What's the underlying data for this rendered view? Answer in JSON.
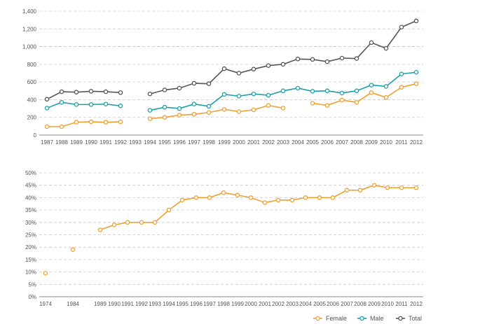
{
  "chart_data": [
    {
      "type": "line",
      "title": "",
      "xlabel": "",
      "ylabel": "",
      "ylim": [
        0,
        1400
      ],
      "yticks": [
        "0",
        "200",
        "400",
        "600",
        "800",
        "1,000",
        "1,200",
        "1,400"
      ],
      "ytick_values": [
        0,
        200,
        400,
        600,
        800,
        1000,
        1200,
        1400
      ],
      "categories": [
        "1987",
        "1988",
        "1989",
        "1990",
        "1991",
        "1992",
        "1993",
        "1994",
        "1995",
        "1996",
        "1997",
        "1998",
        "1999",
        "2000",
        "2001",
        "2002",
        "2003",
        "2004",
        "2005",
        "2006",
        "2007",
        "2008",
        "2009",
        "2010",
        "2011",
        "2012"
      ],
      "grid": true,
      "series": [
        {
          "name": "Female",
          "color": "#f0a030",
          "values": [
            95,
            95,
            145,
            150,
            145,
            150,
            null,
            185,
            200,
            225,
            235,
            255,
            290,
            265,
            285,
            335,
            305,
            null,
            360,
            335,
            395,
            370,
            480,
            425,
            540,
            580
          ]
        },
        {
          "name": "Male",
          "color": "#1aa0a8",
          "values": [
            305,
            370,
            345,
            345,
            350,
            330,
            null,
            280,
            315,
            300,
            350,
            325,
            460,
            440,
            465,
            450,
            500,
            530,
            495,
            500,
            475,
            500,
            565,
            550,
            690,
            710
          ]
        },
        {
          "name": "Total",
          "color": "#555555",
          "values": [
            405,
            490,
            485,
            495,
            490,
            480,
            null,
            465,
            510,
            530,
            585,
            580,
            750,
            700,
            745,
            785,
            800,
            860,
            855,
            830,
            870,
            865,
            1045,
            980,
            1220,
            1290
          ]
        }
      ]
    },
    {
      "type": "line",
      "title": "",
      "xlabel": "",
      "ylabel": "",
      "ylim": [
        0,
        50
      ],
      "yticks": [
        "0%",
        "5%",
        "10%",
        "15%",
        "20%",
        "25%",
        "30%",
        "35%",
        "40%",
        "45%",
        "50%"
      ],
      "ytick_values": [
        0,
        5,
        10,
        15,
        20,
        25,
        30,
        35,
        40,
        45,
        50
      ],
      "categories": [
        "1974",
        "1984",
        "1989",
        "1990",
        "1991",
        "1992",
        "1993",
        "1994",
        "1995",
        "1996",
        "1997",
        "1998",
        "1999",
        "2000",
        "2001",
        "2002",
        "2003",
        "2004",
        "2005",
        "2006",
        "2007",
        "2008",
        "2009",
        "2010",
        "2011",
        "2012"
      ],
      "grid": true,
      "series": [
        {
          "name": "Female",
          "color": "#f0a030",
          "values": [
            9.5,
            19,
            27,
            29,
            30,
            30,
            30,
            35,
            39,
            40,
            40,
            42,
            41,
            40,
            38,
            39,
            39,
            40,
            40,
            40,
            43,
            43,
            45,
            44,
            44,
            44
          ]
        }
      ]
    }
  ],
  "legend": {
    "placement": "bottom-right",
    "items": [
      {
        "label": "Female",
        "color": "#f0a030"
      },
      {
        "label": "Male",
        "color": "#1aa0a8"
      },
      {
        "label": "Total",
        "color": "#555555"
      }
    ]
  }
}
